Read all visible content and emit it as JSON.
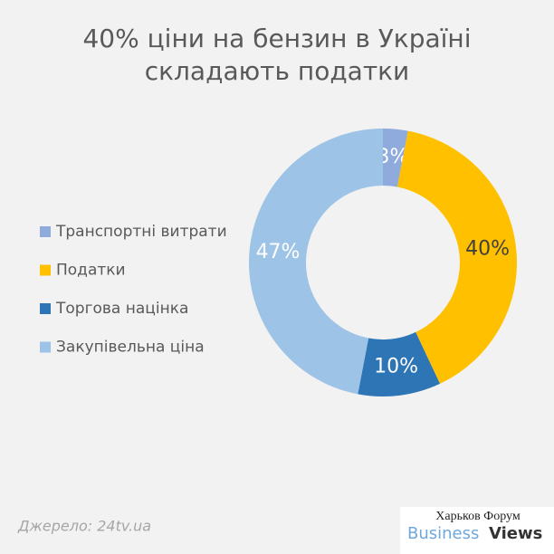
{
  "chart_data": {
    "type": "donut",
    "title": [
      "40% ціни на бензин в Україні",
      "складають податки"
    ],
    "categories": [
      "Транспортні витрати",
      "Податки",
      "Торгова націнка",
      "Закупівельна ціна"
    ],
    "values": [
      3,
      40,
      10,
      47
    ],
    "value_labels": [
      "3%",
      "40%",
      "10%",
      "47%"
    ],
    "colors": [
      "#8faadc",
      "#ffc000",
      "#2e75b6",
      "#9dc3e6"
    ],
    "legend": "left",
    "source": "Джерело: 24tv.ua",
    "watermark": [
      "Харьков Форум",
      "Business",
      "Views"
    ]
  }
}
